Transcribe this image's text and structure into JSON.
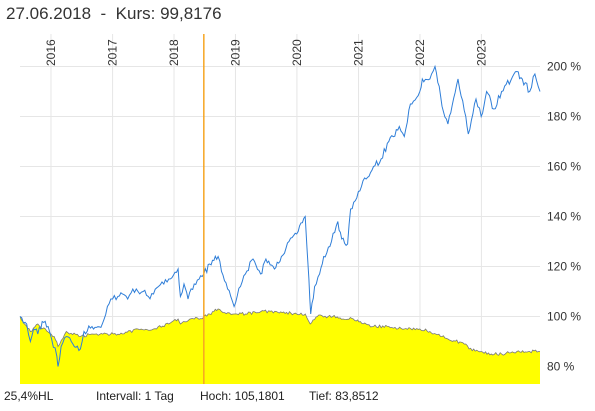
{
  "header": {
    "date": "27.06.2018",
    "separator": "-",
    "price_label": "Kurs: 99,8176"
  },
  "footer": {
    "hl": "25,4%HL",
    "interval": "Intervall: 1 Tag",
    "high": "Hoch: 105,1801",
    "low": "Tief: 83,8512"
  },
  "chart_data": {
    "type": "line",
    "x_axis": {
      "type": "date",
      "range": [
        "2015-07-01",
        "2023-12-15"
      ],
      "tick_labels": [
        "2016",
        "2017",
        "2018",
        "2019",
        "2020",
        "2021",
        "2022",
        "2023"
      ],
      "tick_dates": [
        "2016-01-01",
        "2017-01-01",
        "2018-01-01",
        "2019-01-01",
        "2020-01-01",
        "2021-01-01",
        "2022-01-01",
        "2023-01-01"
      ],
      "label_orientation": "vertical"
    },
    "y_axis": {
      "unit": "%",
      "position": "right",
      "range": [
        73,
        213
      ],
      "ticks": [
        80,
        100,
        120,
        140,
        160,
        180,
        200
      ],
      "tick_labels": [
        "80 %",
        "100 %",
        "120 %",
        "140 %",
        "160 %",
        "180 %",
        "200 %"
      ]
    },
    "grid": true,
    "marker": {
      "date": "2018-06-27",
      "color": "#f5a623"
    },
    "series": [
      {
        "style": "line",
        "color": "#2f7ed8",
        "points": [
          [
            "2015-07-01",
            100
          ],
          [
            "2015-08-10",
            97
          ],
          [
            "2015-09-01",
            90
          ],
          [
            "2015-09-20",
            95
          ],
          [
            "2015-10-15",
            93
          ],
          [
            "2015-11-10",
            98
          ],
          [
            "2015-12-15",
            96
          ],
          [
            "2016-01-05",
            91
          ],
          [
            "2016-02-05",
            84
          ],
          [
            "2016-02-12",
            80
          ],
          [
            "2016-03-01",
            88
          ],
          [
            "2016-04-01",
            92
          ],
          [
            "2016-05-01",
            90
          ],
          [
            "2016-06-24",
            87
          ],
          [
            "2016-07-15",
            94
          ],
          [
            "2016-09-01",
            96
          ],
          [
            "2016-11-01",
            97
          ],
          [
            "2016-12-01",
            104
          ],
          [
            "2017-01-01",
            107
          ],
          [
            "2017-02-01",
            108
          ],
          [
            "2017-03-01",
            109
          ],
          [
            "2017-04-01",
            107
          ],
          [
            "2017-05-01",
            111
          ],
          [
            "2017-06-01",
            110
          ],
          [
            "2017-07-01",
            110
          ],
          [
            "2017-08-01",
            108
          ],
          [
            "2017-09-01",
            109
          ],
          [
            "2017-10-01",
            112
          ],
          [
            "2017-11-01",
            113
          ],
          [
            "2017-12-01",
            115
          ],
          [
            "2018-01-25",
            119
          ],
          [
            "2018-02-08",
            108
          ],
          [
            "2018-03-01",
            113
          ],
          [
            "2018-03-25",
            107
          ],
          [
            "2018-05-01",
            113
          ],
          [
            "2018-06-27",
            117
          ],
          [
            "2018-08-01",
            121
          ],
          [
            "2018-09-20",
            124
          ],
          [
            "2018-10-10",
            118
          ],
          [
            "2018-11-15",
            111
          ],
          [
            "2018-12-24",
            104
          ],
          [
            "2019-01-31",
            112
          ],
          [
            "2019-03-01",
            117
          ],
          [
            "2019-04-15",
            123
          ],
          [
            "2019-05-30",
            117
          ],
          [
            "2019-07-01",
            123
          ],
          [
            "2019-08-20",
            119
          ],
          [
            "2019-10-01",
            124
          ],
          [
            "2019-11-15",
            130
          ],
          [
            "2019-12-31",
            133
          ],
          [
            "2020-02-19",
            140
          ],
          [
            "2020-03-12",
            115
          ],
          [
            "2020-03-23",
            101
          ],
          [
            "2020-04-15",
            112
          ],
          [
            "2020-05-15",
            117
          ],
          [
            "2020-06-08",
            124
          ],
          [
            "2020-07-15",
            128
          ],
          [
            "2020-08-31",
            138
          ],
          [
            "2020-09-23",
            131
          ],
          [
            "2020-10-28",
            129
          ],
          [
            "2020-11-15",
            143
          ],
          [
            "2020-12-31",
            150
          ],
          [
            "2021-02-15",
            155
          ],
          [
            "2021-03-31",
            160
          ],
          [
            "2021-05-15",
            163
          ],
          [
            "2021-06-30",
            170
          ],
          [
            "2021-08-31",
            176
          ],
          [
            "2021-09-30",
            172
          ],
          [
            "2021-11-05",
            185
          ],
          [
            "2021-12-31",
            190
          ],
          [
            "2022-01-15",
            195
          ],
          [
            "2022-03-01",
            195
          ],
          [
            "2022-03-31",
            200
          ],
          [
            "2022-05-20",
            182
          ],
          [
            "2022-06-16",
            177
          ],
          [
            "2022-08-15",
            195
          ],
          [
            "2022-09-30",
            180
          ],
          [
            "2022-10-15",
            173
          ],
          [
            "2022-11-30",
            187
          ],
          [
            "2022-12-31",
            180
          ],
          [
            "2023-02-01",
            190
          ],
          [
            "2023-03-15",
            183
          ],
          [
            "2023-05-01",
            190
          ],
          [
            "2023-07-31",
            198
          ],
          [
            "2023-09-01",
            195
          ],
          [
            "2023-10-15",
            190
          ],
          [
            "2023-11-15",
            197
          ],
          [
            "2023-12-15",
            190
          ]
        ]
      },
      {
        "style": "area",
        "color": "#7a7a7a",
        "fill": "#ffff00",
        "points": [
          [
            "2015-07-01",
            100
          ],
          [
            "2015-09-01",
            94
          ],
          [
            "2015-10-15",
            97
          ],
          [
            "2016-01-20",
            92
          ],
          [
            "2016-02-12",
            88
          ],
          [
            "2016-04-01",
            94
          ],
          [
            "2016-06-24",
            92
          ],
          [
            "2016-09-01",
            93
          ],
          [
            "2016-12-01",
            93
          ],
          [
            "2017-03-01",
            93
          ],
          [
            "2017-06-01",
            95
          ],
          [
            "2017-09-01",
            95
          ],
          [
            "2017-12-01",
            97
          ],
          [
            "2018-01-25",
            99
          ],
          [
            "2018-02-08",
            97
          ],
          [
            "2018-05-01",
            99
          ],
          [
            "2018-06-27",
            99.8
          ],
          [
            "2018-08-01",
            101
          ],
          [
            "2018-09-20",
            103
          ],
          [
            "2018-10-10",
            102
          ],
          [
            "2018-12-24",
            101
          ],
          [
            "2019-03-01",
            101
          ],
          [
            "2019-06-01",
            102
          ],
          [
            "2019-09-01",
            102
          ],
          [
            "2019-12-31",
            101
          ],
          [
            "2020-02-20",
            101
          ],
          [
            "2020-03-20",
            97
          ],
          [
            "2020-05-01",
            100
          ],
          [
            "2020-08-01",
            100
          ],
          [
            "2020-10-01",
            99
          ],
          [
            "2020-12-01",
            99
          ],
          [
            "2021-02-15",
            97
          ],
          [
            "2021-03-31",
            96
          ],
          [
            "2021-06-30",
            96
          ],
          [
            "2021-09-30",
            95
          ],
          [
            "2021-12-31",
            95
          ],
          [
            "2022-03-01",
            94
          ],
          [
            "2022-06-16",
            91
          ],
          [
            "2022-09-30",
            89
          ],
          [
            "2022-10-20",
            87
          ],
          [
            "2022-12-31",
            86
          ],
          [
            "2023-03-01",
            85
          ],
          [
            "2023-05-01",
            85
          ],
          [
            "2023-07-31",
            86
          ],
          [
            "2023-10-15",
            86
          ],
          [
            "2023-12-15",
            86
          ]
        ]
      }
    ]
  }
}
